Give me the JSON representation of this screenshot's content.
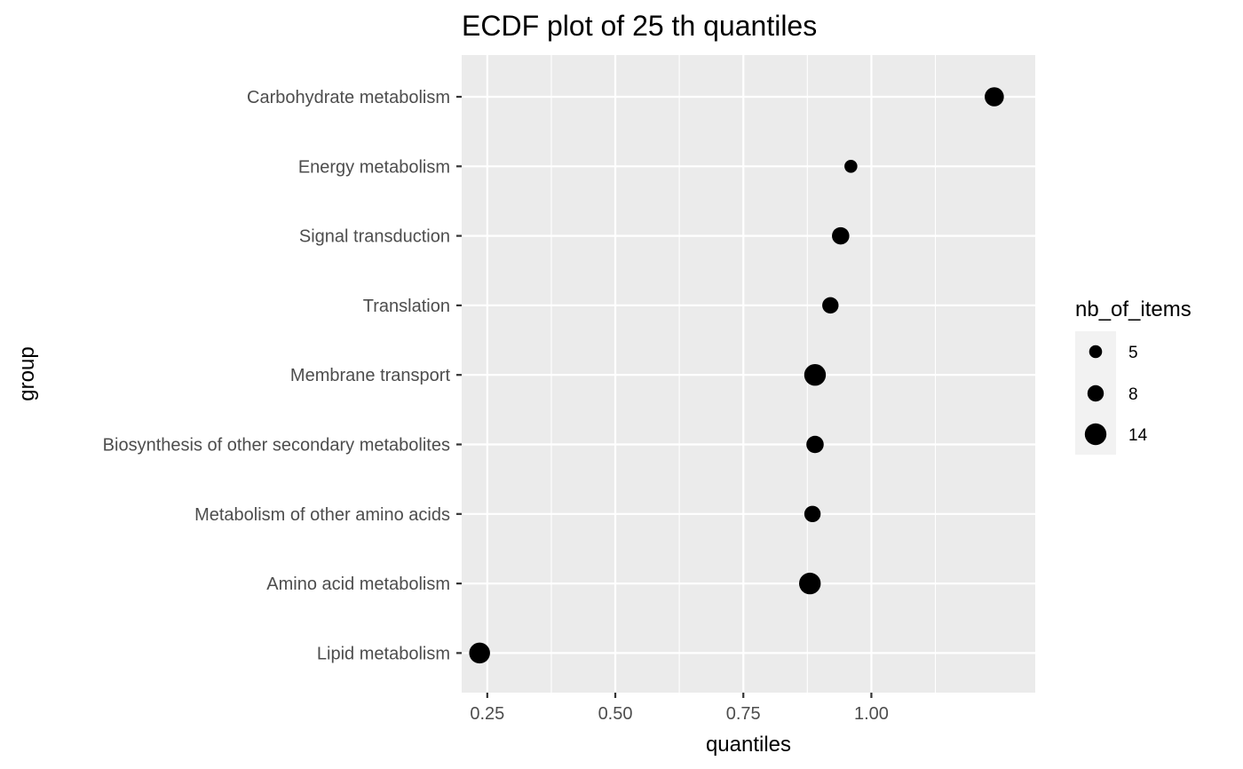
{
  "chart_data": {
    "type": "scatter",
    "title": "ECDF plot of  25 th quantiles",
    "xlabel": "quantiles",
    "ylabel": "group",
    "xlim": [
      0.2,
      1.32
    ],
    "x_ticks": [
      0.25,
      0.5,
      0.75,
      1.0
    ],
    "x_tick_labels": [
      "0.25",
      "0.50",
      "0.75",
      "1.00"
    ],
    "grid": true,
    "categories": [
      "Carbohydrate metabolism",
      "Energy metabolism",
      "Signal transduction",
      "Translation",
      "Membrane transport",
      "Biosynthesis of other secondary metabolites",
      "Metabolism of other amino acids",
      "Amino acid metabolism",
      "Lipid metabolism"
    ],
    "points": [
      {
        "group": "Carbohydrate metabolism",
        "x": 1.24,
        "size": 11
      },
      {
        "group": "Energy metabolism",
        "x": 0.96,
        "size": 5
      },
      {
        "group": "Signal transduction",
        "x": 0.94,
        "size": 9
      },
      {
        "group": "Translation",
        "x": 0.92,
        "size": 8
      },
      {
        "group": "Membrane transport",
        "x": 0.89,
        "size": 14
      },
      {
        "group": "Biosynthesis of other secondary metabolites",
        "x": 0.89,
        "size": 9
      },
      {
        "group": "Metabolism of other amino acids",
        "x": 0.885,
        "size": 8
      },
      {
        "group": "Amino acid metabolism",
        "x": 0.88,
        "size": 14
      },
      {
        "group": "Lipid metabolism",
        "x": 0.235,
        "size": 13
      }
    ],
    "legend": {
      "title": "nb_of_items",
      "placement": "right",
      "entries": [
        {
          "label": "5",
          "size": 5
        },
        {
          "label": "8",
          "size": 8
        },
        {
          "label": "14",
          "size": 14
        }
      ]
    },
    "colors": {
      "panel": "#ebebeb",
      "grid": "#ffffff",
      "point": "#000000",
      "tick_text": "#4d4d4d"
    }
  }
}
